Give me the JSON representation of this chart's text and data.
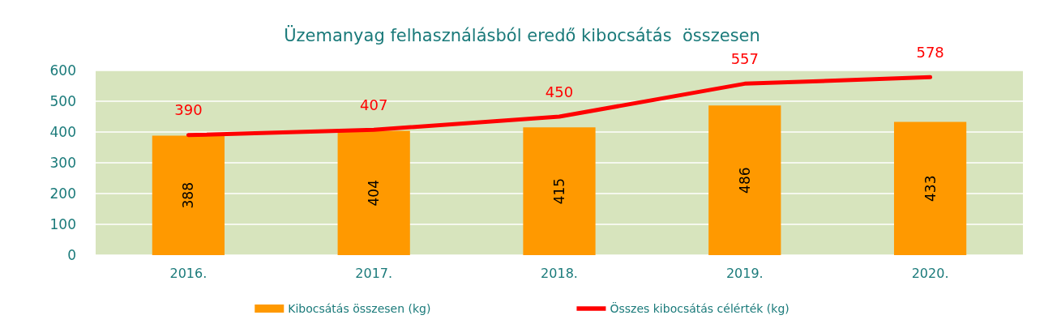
{
  "chart_data": {
    "type": "bar",
    "title": "Üzemanyag felhasználásból eredő kibocsátás  összesen",
    "categories": [
      "2016.",
      "2017.",
      "2018.",
      "2019.",
      "2020."
    ],
    "series": [
      {
        "name": "Kibocsátás összesen (kg)",
        "color": "#ff9900",
        "values": [
          388,
          404,
          415,
          486,
          433
        ]
      },
      {
        "name": "Összes kibocsátás célérték (kg)",
        "type": "line",
        "color": "#ff0000",
        "values": [
          390,
          407,
          450,
          557,
          578
        ]
      }
    ],
    "ylim": [
      0,
      600
    ],
    "yticks": [
      0,
      100,
      200,
      300,
      400,
      500,
      600
    ],
    "grid": "y",
    "legend": "bottom",
    "data_labels": true,
    "marker": "none"
  }
}
